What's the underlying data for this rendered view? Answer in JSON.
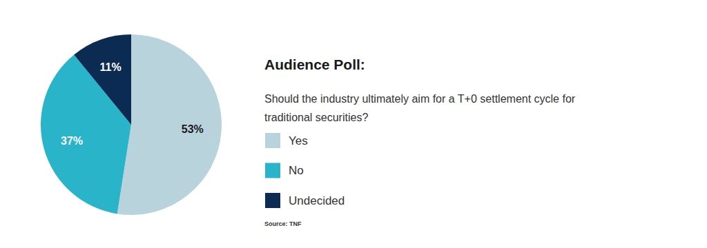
{
  "chart_data": {
    "type": "pie",
    "title": "Audience Poll:",
    "subtitle": "Should the industry ultimately aim for a T+0 settlement cycle for traditional securities?",
    "categories": [
      "Yes",
      "No",
      "Undecided"
    ],
    "values": [
      53,
      37,
      11
    ],
    "value_labels": [
      "53%",
      "37%",
      "11%"
    ],
    "colors": [
      "#b9d3dc",
      "#29b4c9",
      "#0c2b52"
    ],
    "data_labels": true,
    "legend": "right",
    "source": "Source: TNF"
  }
}
